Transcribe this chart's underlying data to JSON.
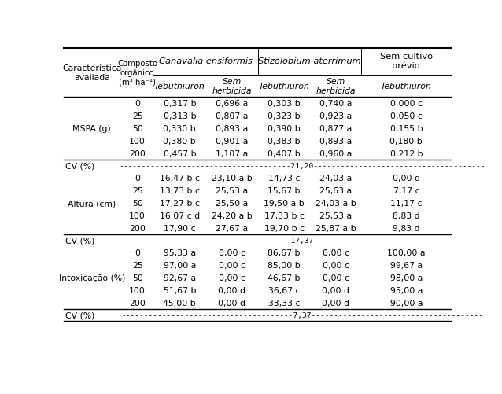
{
  "bg_color": "#ffffff",
  "font_size": 7.8,
  "header_font_size": 8.2,
  "col1_header": "Característica\navaliada",
  "col2_header": "Composto\norgânico\n(m³ ha⁻¹)",
  "group1_header": "Canavalia ensiformis",
  "group2_header": "Stizolobium aterrimum",
  "group3_header": "Sem cultivo\nprévio",
  "sub_headers": [
    "Tebuthiuron",
    "Sem\nherbicida",
    "Tebuthiuron",
    "Sem\nherbicida",
    "Tebuthiuron"
  ],
  "rows": [
    {
      "char": "MSPA (g)",
      "comp": "0",
      "c1": "0,317 b",
      "c2": "0,696 a",
      "s1": "0,303 b",
      "s2": "0,740 a",
      "sc": "0,000 c"
    },
    {
      "char": "",
      "comp": "25",
      "c1": "0,313 b",
      "c2": "0,807 a",
      "s1": "0,323 b",
      "s2": "0,923 a",
      "sc": "0,050 c"
    },
    {
      "char": "",
      "comp": "50",
      "c1": "0,330 b",
      "c2": "0,893 a",
      "s1": "0,390 b",
      "s2": "0,877 a",
      "sc": "0,155 b"
    },
    {
      "char": "",
      "comp": "100",
      "c1": "0,380 b",
      "c2": "0,901 a",
      "s1": "0,383 b",
      "s2": "0,893 a",
      "sc": "0,180 b"
    },
    {
      "char": "",
      "comp": "200",
      "c1": "0,457 b",
      "c2": "1,107 a",
      "s1": "0,407 b",
      "s2": "0,960 a",
      "sc": "0,212 b"
    },
    {
      "char": "CV (%)",
      "comp": "",
      "c1": "",
      "c2": "",
      "s1": "",
      "s2": "",
      "sc": "",
      "cv": "21,20"
    },
    {
      "char": "Altura (cm)",
      "comp": "0",
      "c1": "16,47 b c",
      "c2": "23,10 a b",
      "s1": "14,73 c",
      "s2": "24,03 a",
      "sc": "0,00 d"
    },
    {
      "char": "",
      "comp": "25",
      "c1": "13,73 b c",
      "c2": "25,53 a",
      "s1": "15,67 b",
      "s2": "25,63 a",
      "sc": "7,17 c"
    },
    {
      "char": "",
      "comp": "50",
      "c1": "17,27 b c",
      "c2": "25,50 a",
      "s1": "19,50 a b",
      "s2": "24,03 a b",
      "sc": "11,17 c"
    },
    {
      "char": "",
      "comp": "100",
      "c1": "16,07 c d",
      "c2": "24,20 a b",
      "s1": "17,33 b c",
      "s2": "25,53 a",
      "sc": "8,83 d"
    },
    {
      "char": "",
      "comp": "200",
      "c1": "17,90 c",
      "c2": "27,67 a",
      "s1": "19,70 b c",
      "s2": "25,87 a b",
      "sc": "9,83 d"
    },
    {
      "char": "CV (%)",
      "comp": "",
      "c1": "",
      "c2": "",
      "s1": "",
      "s2": "",
      "sc": "",
      "cv": "17,37"
    },
    {
      "char": "Intoxicação (%)",
      "comp": "0",
      "c1": "95,33 a",
      "c2": "0,00 c",
      "s1": "86,67 b",
      "s2": "0,00 c",
      "sc": "100,00 a"
    },
    {
      "char": "",
      "comp": "25",
      "c1": "97,00 a",
      "c2": "0,00 c",
      "s1": "85,00 b",
      "s2": "0,00 c",
      "sc": "99,67 a"
    },
    {
      "char": "",
      "comp": "50",
      "c1": "92,67 a",
      "c2": "0,00 c",
      "s1": "46,67 b",
      "s2": "0,00 c",
      "sc": "98,00 a"
    },
    {
      "char": "",
      "comp": "100",
      "c1": "51,67 b",
      "c2": "0,00 d",
      "s1": "36,67 c",
      "s2": "0,00 d",
      "sc": "95,00 a"
    },
    {
      "char": "",
      "comp": "200",
      "c1": "45,00 b",
      "c2": "0,00 d",
      "s1": "33,33 c",
      "s2": "0,00 d",
      "sc": "90,00 a"
    },
    {
      "char": "CV (%)",
      "comp": "",
      "c1": "",
      "c2": "",
      "s1": "",
      "s2": "",
      "sc": "",
      "cv": "7,37"
    }
  ]
}
